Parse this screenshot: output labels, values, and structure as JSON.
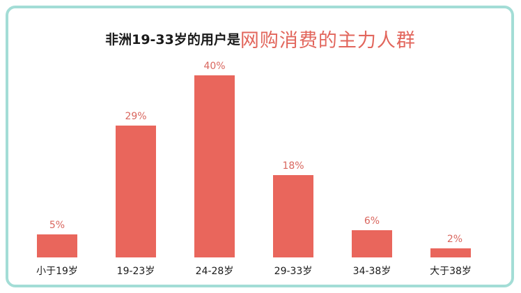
{
  "title": {
    "prefix": "非洲19-33岁的用户是",
    "highlight": "网购消费的主力人群"
  },
  "colors": {
    "bar": "#e9665c",
    "value_label": "#d9665e",
    "highlight": "#e2665c",
    "frame": "#a3ddd6"
  },
  "chart_data": {
    "type": "bar",
    "title": "非洲19-33岁的用户是网购消费的主力人群",
    "xlabel": "",
    "ylabel": "",
    "categories": [
      "小于19岁",
      "19-23岁",
      "24-28岁",
      "29-33岁",
      "34-38岁",
      "大于38岁"
    ],
    "values": [
      5,
      29,
      40,
      18,
      6,
      2
    ],
    "value_labels": [
      "5%",
      "29%",
      "40%",
      "18%",
      "6%",
      "2%"
    ],
    "unit": "%",
    "ylim": [
      0,
      45
    ],
    "grid": false,
    "legend": "none"
  }
}
